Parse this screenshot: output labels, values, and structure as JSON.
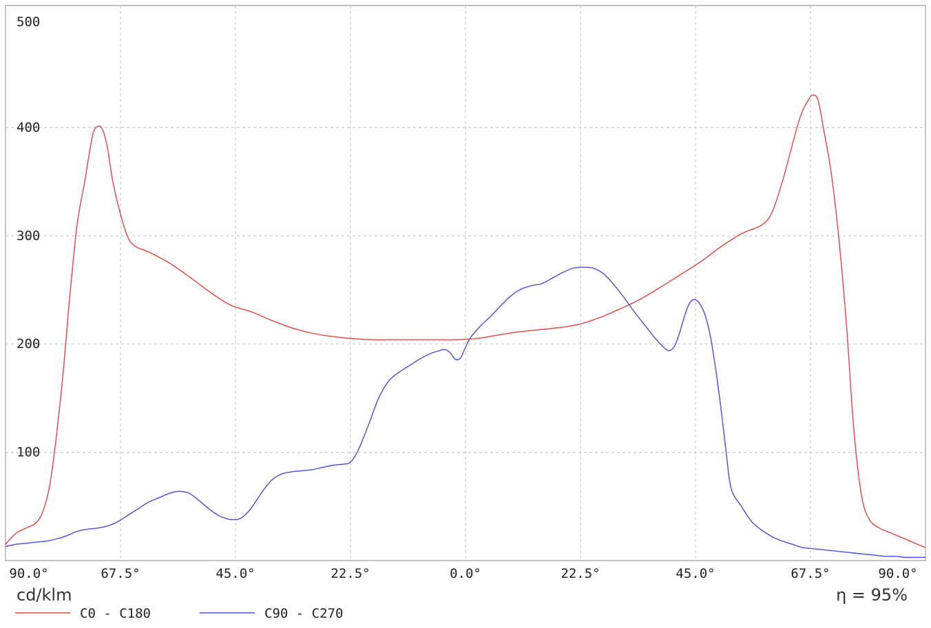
{
  "chart_data": {
    "type": "line",
    "y_unit_label": "cd/klm",
    "efficiency_label": "η = 95%",
    "ylim": [
      0,
      500
    ],
    "yticks": [
      100,
      200,
      300,
      400,
      500
    ],
    "xlim": [
      -90,
      90
    ],
    "xticks": [
      {
        "value": -90,
        "label": "90.0°"
      },
      {
        "value": -67.5,
        "label": "67.5°"
      },
      {
        "value": -45,
        "label": "45.0°"
      },
      {
        "value": -22.5,
        "label": "22.5°"
      },
      {
        "value": 0,
        "label": "0.0°"
      },
      {
        "value": 22.5,
        "label": "22.5°"
      },
      {
        "value": 45,
        "label": "45.0°"
      },
      {
        "value": 67.5,
        "label": "67.5°"
      },
      {
        "value": 90,
        "label": "90.0°"
      }
    ],
    "grid": true,
    "legend_position": "bottom-left",
    "series": [
      {
        "name": "C0 - C180",
        "color": "#e8403c",
        "points": [
          [
            -90,
            15
          ],
          [
            -88,
            25
          ],
          [
            -86,
            30
          ],
          [
            -84,
            35
          ],
          [
            -82.5,
            48
          ],
          [
            -81,
            80
          ],
          [
            -79,
            160
          ],
          [
            -77.5,
            240
          ],
          [
            -76,
            310
          ],
          [
            -74.5,
            350
          ],
          [
            -73,
            392
          ],
          [
            -72,
            401
          ],
          [
            -71,
            398
          ],
          [
            -70,
            380
          ],
          [
            -69,
            350
          ],
          [
            -67.5,
            320
          ],
          [
            -66,
            298
          ],
          [
            -64.5,
            290
          ],
          [
            -62,
            285
          ],
          [
            -58,
            275
          ],
          [
            -54,
            262
          ],
          [
            -50,
            248
          ],
          [
            -46,
            236
          ],
          [
            -42,
            230
          ],
          [
            -38,
            222
          ],
          [
            -34,
            215
          ],
          [
            -30,
            210
          ],
          [
            -26,
            207
          ],
          [
            -22,
            205
          ],
          [
            -18,
            204
          ],
          [
            -14,
            204
          ],
          [
            -10,
            204
          ],
          [
            -6,
            204
          ],
          [
            -2,
            204
          ],
          [
            2,
            205
          ],
          [
            6,
            208
          ],
          [
            10,
            211
          ],
          [
            14,
            213
          ],
          [
            18,
            215
          ],
          [
            22,
            218
          ],
          [
            26,
            224
          ],
          [
            30,
            232
          ],
          [
            34,
            241
          ],
          [
            38,
            252
          ],
          [
            42,
            264
          ],
          [
            46,
            276
          ],
          [
            50,
            290
          ],
          [
            54,
            302
          ],
          [
            58,
            310
          ],
          [
            60,
            322
          ],
          [
            62,
            350
          ],
          [
            64,
            385
          ],
          [
            65.5,
            410
          ],
          [
            67,
            425
          ],
          [
            68,
            430
          ],
          [
            69,
            425
          ],
          [
            70,
            400
          ],
          [
            71.5,
            360
          ],
          [
            73,
            300
          ],
          [
            74.5,
            220
          ],
          [
            76,
            120
          ],
          [
            77.5,
            60
          ],
          [
            79,
            38
          ],
          [
            81,
            30
          ],
          [
            83,
            26
          ],
          [
            85,
            22
          ],
          [
            87,
            18
          ],
          [
            89,
            14
          ],
          [
            90,
            12
          ]
        ]
      },
      {
        "name": "C90 - C270",
        "color": "#4a48e0",
        "points": [
          [
            -90,
            13
          ],
          [
            -88,
            15
          ],
          [
            -86,
            16
          ],
          [
            -84,
            17
          ],
          [
            -82,
            18
          ],
          [
            -80,
            20
          ],
          [
            -78,
            23
          ],
          [
            -76,
            27
          ],
          [
            -74,
            29
          ],
          [
            -72,
            30
          ],
          [
            -70,
            32
          ],
          [
            -68,
            36
          ],
          [
            -66,
            42
          ],
          [
            -64,
            48
          ],
          [
            -62,
            54
          ],
          [
            -60,
            58
          ],
          [
            -58,
            62
          ],
          [
            -56,
            64
          ],
          [
            -54,
            62
          ],
          [
            -52,
            55
          ],
          [
            -50,
            47
          ],
          [
            -48,
            41
          ],
          [
            -46,
            38
          ],
          [
            -44,
            39
          ],
          [
            -42,
            48
          ],
          [
            -40,
            62
          ],
          [
            -38,
            74
          ],
          [
            -36,
            80
          ],
          [
            -34,
            82
          ],
          [
            -32,
            83
          ],
          [
            -30,
            84
          ],
          [
            -28,
            86
          ],
          [
            -26,
            88
          ],
          [
            -24,
            89
          ],
          [
            -22.5,
            91
          ],
          [
            -21,
            102
          ],
          [
            -19,
            125
          ],
          [
            -17,
            150
          ],
          [
            -15,
            166
          ],
          [
            -13,
            174
          ],
          [
            -11,
            180
          ],
          [
            -9,
            186
          ],
          [
            -7,
            191
          ],
          [
            -5,
            194
          ],
          [
            -4,
            195
          ],
          [
            -3,
            192
          ],
          [
            -2,
            186
          ],
          [
            -1,
            187
          ],
          [
            0,
            197
          ],
          [
            1,
            206
          ],
          [
            3,
            217
          ],
          [
            5,
            226
          ],
          [
            7,
            236
          ],
          [
            9,
            245
          ],
          [
            11,
            251
          ],
          [
            13,
            254
          ],
          [
            15,
            256
          ],
          [
            17,
            261
          ],
          [
            19,
            266
          ],
          [
            21,
            270
          ],
          [
            23,
            271
          ],
          [
            25,
            270
          ],
          [
            27,
            265
          ],
          [
            29,
            255
          ],
          [
            31,
            243
          ],
          [
            33,
            230
          ],
          [
            35,
            218
          ],
          [
            37,
            206
          ],
          [
            39,
            196
          ],
          [
            40,
            194
          ],
          [
            41,
            199
          ],
          [
            42,
            212
          ],
          [
            43,
            228
          ],
          [
            44,
            239
          ],
          [
            45,
            241
          ],
          [
            46,
            236
          ],
          [
            47,
            225
          ],
          [
            48,
            205
          ],
          [
            49,
            175
          ],
          [
            50,
            140
          ],
          [
            51,
            100
          ],
          [
            52,
            66
          ],
          [
            54,
            50
          ],
          [
            56,
            36
          ],
          [
            58,
            28
          ],
          [
            60,
            22
          ],
          [
            62,
            18
          ],
          [
            64,
            15
          ],
          [
            66,
            12
          ],
          [
            68,
            11
          ],
          [
            70,
            10
          ],
          [
            72,
            9
          ],
          [
            74,
            8
          ],
          [
            76,
            7
          ],
          [
            78,
            6
          ],
          [
            80,
            5
          ],
          [
            82,
            4
          ],
          [
            84,
            4
          ],
          [
            86,
            3
          ],
          [
            88,
            3
          ],
          [
            90,
            3
          ]
        ]
      }
    ]
  }
}
